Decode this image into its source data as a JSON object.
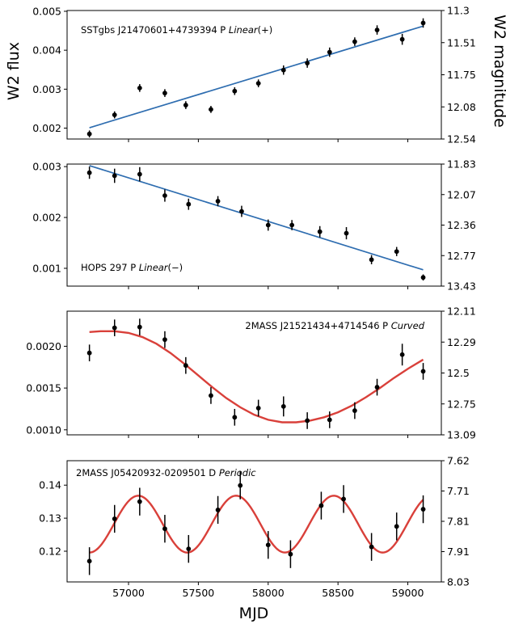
{
  "figure": {
    "ylabel_left": "W2 flux",
    "ylabel_right": "W2 magnitude",
    "xlabel": "MJD"
  },
  "chart_data": [
    {
      "type": "scatter",
      "annotation": {
        "prefix": "SSTgbs J21470601+4739394 P ",
        "italic": "Linear",
        "suffix": "(+)"
      },
      "xlim": [
        56560,
        59240
      ],
      "ylim": [
        0.00172,
        0.00502
      ],
      "yticks": [
        0.002,
        0.003,
        0.004,
        0.005
      ],
      "ytick_labels": [
        "0.002",
        "0.003",
        "0.004",
        "0.005"
      ],
      "right_tick_labels": [
        "11.3",
        "11.51",
        "11.75",
        "12.08",
        "12.54"
      ],
      "points": [
        {
          "x": 56720,
          "y": 0.00185,
          "err": 9e-05
        },
        {
          "x": 56900,
          "y": 0.00234,
          "err": 9e-05
        },
        {
          "x": 57080,
          "y": 0.00303,
          "err": 0.0001
        },
        {
          "x": 57260,
          "y": 0.0029,
          "err": 0.0001
        },
        {
          "x": 57410,
          "y": 0.00259,
          "err": 0.0001
        },
        {
          "x": 57590,
          "y": 0.00248,
          "err": 9e-05
        },
        {
          "x": 57760,
          "y": 0.00295,
          "err": 0.0001
        },
        {
          "x": 57930,
          "y": 0.00315,
          "err": 0.0001
        },
        {
          "x": 58110,
          "y": 0.00349,
          "err": 0.00012
        },
        {
          "x": 58280,
          "y": 0.00367,
          "err": 0.00012
        },
        {
          "x": 58440,
          "y": 0.00395,
          "err": 0.00012
        },
        {
          "x": 58620,
          "y": 0.00422,
          "err": 0.00011
        },
        {
          "x": 58780,
          "y": 0.00452,
          "err": 0.00012
        },
        {
          "x": 58960,
          "y": 0.00428,
          "err": 0.00014
        },
        {
          "x": 59110,
          "y": 0.0047,
          "err": 0.00012
        }
      ],
      "fit": {
        "kind": "line",
        "color": "#2e6db0",
        "x": [
          56720,
          59110
        ],
        "y": [
          0.00201,
          0.00462
        ]
      }
    },
    {
      "type": "scatter",
      "annotation": {
        "prefix": "HOPS 297 P ",
        "italic": "Linear",
        "suffix": "(−)"
      },
      "xlim": [
        56560,
        59240
      ],
      "ylim": [
        0.00065,
        0.00305
      ],
      "yticks": [
        0.001,
        0.002,
        0.003
      ],
      "ytick_labels": [
        "0.001",
        "0.002",
        "0.003"
      ],
      "right_tick_labels": [
        "11.83",
        "12.07",
        "12.36",
        "12.77",
        "13.43"
      ],
      "points": [
        {
          "x": 56720,
          "y": 0.00288,
          "err": 0.00012
        },
        {
          "x": 56900,
          "y": 0.00282,
          "err": 0.00014
        },
        {
          "x": 57080,
          "y": 0.00285,
          "err": 0.00014
        },
        {
          "x": 57260,
          "y": 0.00243,
          "err": 0.00012
        },
        {
          "x": 57430,
          "y": 0.00226,
          "err": 0.00011
        },
        {
          "x": 57640,
          "y": 0.00232,
          "err": 0.0001
        },
        {
          "x": 57810,
          "y": 0.00212,
          "err": 0.00011
        },
        {
          "x": 58000,
          "y": 0.00185,
          "err": 0.00011
        },
        {
          "x": 58170,
          "y": 0.00185,
          "err": 0.0001
        },
        {
          "x": 58370,
          "y": 0.00172,
          "err": 0.00011
        },
        {
          "x": 58560,
          "y": 0.00169,
          "err": 0.00012
        },
        {
          "x": 58740,
          "y": 0.00117,
          "err": 9e-05
        },
        {
          "x": 58920,
          "y": 0.00133,
          "err": 9e-05
        },
        {
          "x": 59110,
          "y": 0.00082,
          "err": 6e-05
        }
      ],
      "fit": {
        "kind": "line",
        "color": "#2e6db0",
        "x": [
          56720,
          59110
        ],
        "y": [
          0.00302,
          0.00097
        ]
      }
    },
    {
      "type": "scatter",
      "annotation": {
        "prefix": "2MASS J21521434+4714546 P ",
        "italic": "Curved",
        "suffix": ""
      },
      "xlim": [
        56560,
        59240
      ],
      "ylim": [
        0.00094,
        0.00242
      ],
      "yticks": [
        0.001,
        0.0015,
        0.002
      ],
      "ytick_labels": [
        "0.0010",
        "0.0015",
        "0.0020"
      ],
      "right_tick_labels": [
        "12.11",
        "12.29",
        "12.5",
        "12.75",
        "13.09"
      ],
      "points": [
        {
          "x": 56720,
          "y": 0.00192,
          "err": 0.0001
        },
        {
          "x": 56900,
          "y": 0.00222,
          "err": 0.0001
        },
        {
          "x": 57080,
          "y": 0.00223,
          "err": 0.0001
        },
        {
          "x": 57260,
          "y": 0.00208,
          "err": 0.0001
        },
        {
          "x": 57410,
          "y": 0.00177,
          "err": 0.0001
        },
        {
          "x": 57590,
          "y": 0.00141,
          "err": 0.0001
        },
        {
          "x": 57760,
          "y": 0.00115,
          "err": 0.0001
        },
        {
          "x": 57930,
          "y": 0.00126,
          "err": 0.0001
        },
        {
          "x": 58110,
          "y": 0.00128,
          "err": 0.00012
        },
        {
          "x": 58280,
          "y": 0.00111,
          "err": 0.0001
        },
        {
          "x": 58440,
          "y": 0.00112,
          "err": 0.0001
        },
        {
          "x": 58620,
          "y": 0.00123,
          "err": 0.0001
        },
        {
          "x": 58780,
          "y": 0.00151,
          "err": 0.0001
        },
        {
          "x": 58960,
          "y": 0.0019,
          "err": 0.00013
        },
        {
          "x": 59110,
          "y": 0.0017,
          "err": 0.0001
        }
      ],
      "fit": {
        "kind": "curve",
        "color": "#d9403a",
        "x": [
          56720,
          56800,
          56900,
          57000,
          57100,
          57200,
          57300,
          57400,
          57500,
          57600,
          57700,
          57800,
          57900,
          58000,
          58100,
          58200,
          58300,
          58400,
          58500,
          58600,
          58700,
          58800,
          58900,
          59000,
          59110
        ],
        "y": [
          0.00217,
          0.00218,
          0.00218,
          0.00216,
          0.00211,
          0.00203,
          0.00192,
          0.00179,
          0.00165,
          0.00151,
          0.00138,
          0.00127,
          0.00118,
          0.00112,
          0.00109,
          0.00109,
          0.00111,
          0.00115,
          0.00121,
          0.00129,
          0.00139,
          0.0015,
          0.00162,
          0.00173,
          0.00184
        ]
      }
    },
    {
      "type": "scatter",
      "annotation": {
        "prefix": "2MASS J05420932-0209501 D ",
        "italic": "Periodic",
        "suffix": ""
      },
      "xlim": [
        56560,
        59240
      ],
      "ylim": [
        0.1107,
        0.1474
      ],
      "xticks": [
        57000,
        57500,
        58000,
        58500,
        59000
      ],
      "xtick_labels": [
        "57000",
        "57500",
        "58000",
        "58500",
        "59000"
      ],
      "yticks": [
        0.12,
        0.13,
        0.14
      ],
      "ytick_labels": [
        "0.12",
        "0.13",
        "0.14"
      ],
      "right_tick_labels": [
        "7.62",
        "7.71",
        "7.81",
        "7.91",
        "8.03"
      ],
      "points": [
        {
          "x": 56720,
          "y": 0.117,
          "err": 0.0042
        },
        {
          "x": 56900,
          "y": 0.1298,
          "err": 0.0042
        },
        {
          "x": 57080,
          "y": 0.135,
          "err": 0.0042
        },
        {
          "x": 57260,
          "y": 0.1268,
          "err": 0.0042
        },
        {
          "x": 57430,
          "y": 0.1207,
          "err": 0.0042
        },
        {
          "x": 57640,
          "y": 0.1325,
          "err": 0.0042
        },
        {
          "x": 57800,
          "y": 0.1399,
          "err": 0.0042
        },
        {
          "x": 58000,
          "y": 0.1219,
          "err": 0.0042
        },
        {
          "x": 58160,
          "y": 0.1191,
          "err": 0.0042
        },
        {
          "x": 58380,
          "y": 0.1338,
          "err": 0.0042
        },
        {
          "x": 58540,
          "y": 0.1358,
          "err": 0.0042
        },
        {
          "x": 58740,
          "y": 0.1213,
          "err": 0.0042
        },
        {
          "x": 58920,
          "y": 0.1275,
          "err": 0.0042
        },
        {
          "x": 59110,
          "y": 0.1327,
          "err": 0.0042
        }
      ],
      "fit": {
        "kind": "sine",
        "color": "#d9403a",
        "x_start": 56720,
        "x_end": 59110,
        "mean": 0.1282,
        "amplitude": 0.0086,
        "period": 700,
        "peak_x": 57070
      }
    }
  ]
}
